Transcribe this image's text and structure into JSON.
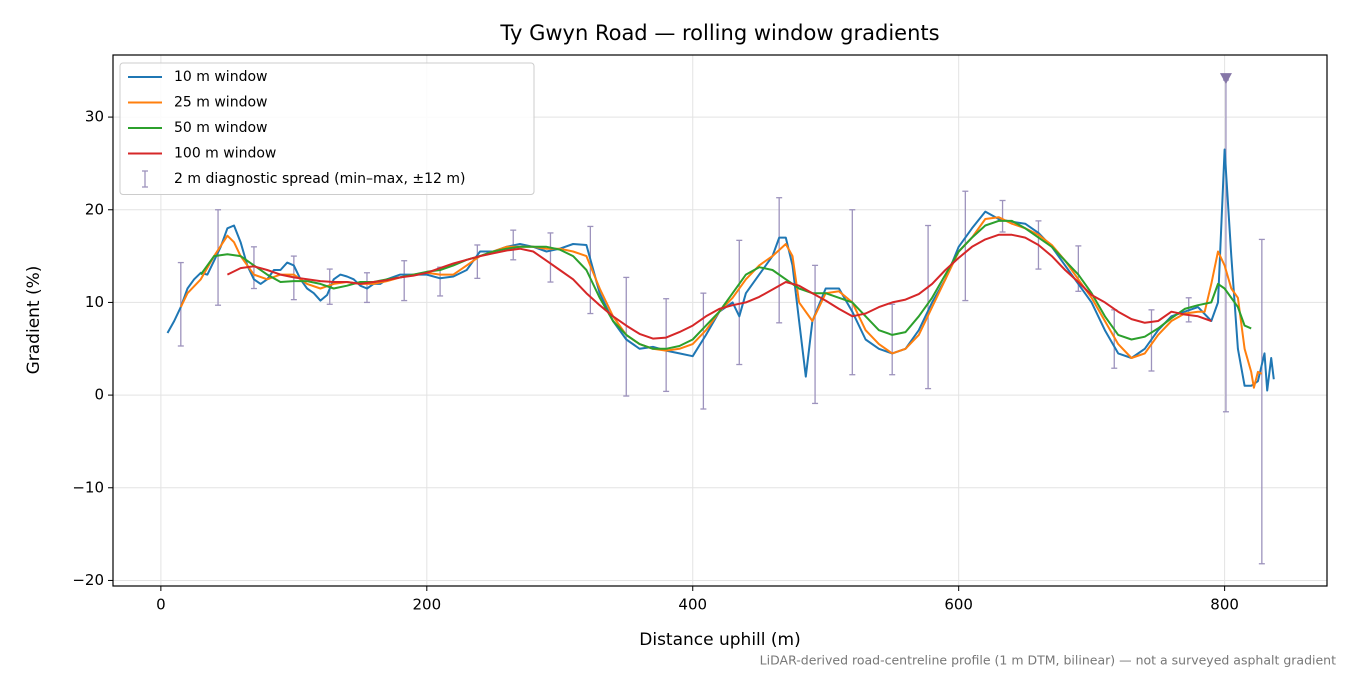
{
  "chart_data": {
    "type": "line",
    "title": "Ty Gwyn Road — rolling window gradients",
    "x_label": "Distance uphill (m)",
    "y_label": "Gradient (%)",
    "footnote": "LiDAR-derived road-centreline profile (1 m DTM, bilinear) — not a surveyed asphalt gradient",
    "xlim": [
      -36,
      877
    ],
    "ylim": [
      -20.6,
      36.7
    ],
    "xticks": [
      0,
      200,
      400,
      600,
      800
    ],
    "yticks": [
      {
        "value": -20,
        "label": "−20"
      },
      {
        "value": -10,
        "label": "−10"
      },
      0,
      10,
      20,
      30
    ],
    "grid": true,
    "legend": "upper left",
    "series": [
      {
        "name": "10 m window",
        "color": "#1f77b4",
        "x": [
          5,
          10,
          15,
          20,
          25,
          30,
          35,
          40,
          45,
          50,
          55,
          60,
          65,
          70,
          75,
          80,
          85,
          90,
          95,
          100,
          105,
          110,
          115,
          120,
          125,
          130,
          135,
          140,
          145,
          150,
          155,
          160,
          165,
          170,
          180,
          190,
          200,
          210,
          220,
          230,
          240,
          250,
          260,
          270,
          280,
          290,
          300,
          310,
          320,
          330,
          340,
          350,
          360,
          370,
          380,
          390,
          400,
          410,
          420,
          430,
          435,
          440,
          450,
          460,
          465,
          470,
          475,
          480,
          485,
          490,
          500,
          510,
          520,
          530,
          540,
          550,
          560,
          570,
          580,
          590,
          600,
          610,
          620,
          630,
          640,
          650,
          660,
          670,
          680,
          690,
          700,
          710,
          720,
          730,
          740,
          750,
          760,
          770,
          780,
          790,
          795,
          800,
          805,
          810,
          815,
          820,
          825,
          830,
          832,
          835,
          837
        ],
        "values": [
          6.7,
          8,
          9.5,
          11.5,
          12.5,
          13.2,
          13,
          14.5,
          16,
          18,
          18.3,
          16.5,
          14,
          12.5,
          12,
          12.5,
          13.5,
          13.5,
          14.3,
          14,
          12.5,
          11.5,
          11,
          10.2,
          10.8,
          12.5,
          13,
          12.8,
          12.5,
          11.8,
          11.5,
          12,
          12,
          12.5,
          13,
          13,
          13,
          12.6,
          12.8,
          13.5,
          15.5,
          15.5,
          16,
          16.3,
          16,
          15.5,
          15.8,
          16.3,
          16.2,
          11,
          8,
          6,
          5,
          5.2,
          4.8,
          4.5,
          4.2,
          6.5,
          9,
          10,
          8.5,
          11,
          13,
          15,
          17,
          17,
          14,
          8,
          2,
          8,
          11.5,
          11.5,
          9,
          6,
          5,
          4.5,
          5,
          7,
          10,
          12.5,
          16,
          18,
          19.8,
          19,
          18.7,
          18.5,
          17.5,
          16,
          14,
          12,
          10,
          7,
          4.5,
          4,
          5,
          7,
          8.5,
          9,
          9.5,
          8,
          10,
          26.5,
          15,
          5,
          1,
          1,
          1.5,
          4.5,
          0.5,
          4,
          1.7
        ]
      },
      {
        "name": "25 m window",
        "color": "#ff7f0e",
        "x": [
          15,
          20,
          30,
          40,
          50,
          55,
          60,
          70,
          80,
          90,
          100,
          110,
          120,
          130,
          140,
          150,
          160,
          170,
          180,
          190,
          200,
          210,
          220,
          230,
          240,
          250,
          260,
          270,
          280,
          290,
          300,
          310,
          320,
          330,
          340,
          350,
          360,
          370,
          380,
          390,
          400,
          410,
          420,
          430,
          440,
          450,
          460,
          470,
          475,
          480,
          490,
          500,
          510,
          520,
          530,
          540,
          550,
          560,
          570,
          580,
          590,
          600,
          610,
          620,
          630,
          640,
          650,
          660,
          670,
          680,
          690,
          700,
          710,
          720,
          730,
          740,
          750,
          760,
          770,
          780,
          785,
          790,
          795,
          800,
          805,
          810,
          815,
          820,
          822,
          825,
          828
        ],
        "values": [
          9.5,
          11,
          12.5,
          15,
          17.2,
          16.5,
          15,
          13,
          12.5,
          13,
          13,
          12,
          11.5,
          12,
          12.2,
          12,
          12,
          12.3,
          12.7,
          13,
          13.2,
          13,
          13,
          14,
          15,
          15.5,
          16,
          16,
          16,
          15.8,
          15.8,
          15.5,
          15,
          11.5,
          8.5,
          6.5,
          5.5,
          5,
          4.8,
          5,
          5.5,
          7,
          9,
          10.5,
          12.5,
          14,
          15,
          16.3,
          15,
          10,
          8,
          11,
          11.2,
          10,
          7,
          5.5,
          4.5,
          5,
          6.5,
          9.5,
          12.5,
          15.5,
          17,
          19,
          19.2,
          18.5,
          18,
          17.3,
          16.2,
          14.5,
          12.5,
          10.5,
          8,
          5.5,
          4,
          4.5,
          6.5,
          8,
          8.8,
          9,
          9,
          12,
          15.5,
          14,
          11.5,
          10.5,
          5,
          2.5,
          0.8,
          2.5,
          2.3
        ]
      },
      {
        "name": "50 m window",
        "color": "#2ca02c",
        "x": [
          30,
          40,
          50,
          60,
          70,
          80,
          90,
          100,
          110,
          120,
          130,
          140,
          150,
          160,
          170,
          180,
          190,
          200,
          210,
          220,
          230,
          240,
          250,
          260,
          270,
          280,
          290,
          300,
          310,
          320,
          330,
          340,
          350,
          360,
          370,
          380,
          390,
          400,
          410,
          420,
          430,
          440,
          450,
          460,
          470,
          480,
          490,
          500,
          510,
          520,
          530,
          540,
          550,
          560,
          570,
          580,
          590,
          600,
          610,
          620,
          630,
          640,
          650,
          660,
          670,
          680,
          690,
          700,
          710,
          720,
          730,
          740,
          750,
          760,
          770,
          780,
          790,
          795,
          800,
          810,
          815,
          820
        ],
        "values": [
          13,
          15,
          15.2,
          15,
          14,
          13,
          12.2,
          12.3,
          12.3,
          12,
          11.5,
          11.8,
          12.2,
          12.2,
          12.5,
          12.7,
          13,
          13.3,
          13.5,
          14,
          14.6,
          15,
          15.5,
          15.8,
          16,
          16,
          16,
          15.7,
          15,
          13.5,
          10.5,
          8,
          6.5,
          5.5,
          5,
          5,
          5.3,
          6,
          7.5,
          9,
          11,
          13,
          13.8,
          13.5,
          12.5,
          11.5,
          11,
          11,
          10.5,
          10,
          8.5,
          7,
          6.5,
          6.8,
          8.5,
          10.5,
          13,
          15.5,
          17,
          18.3,
          18.8,
          18.8,
          18,
          17,
          16,
          14.5,
          13,
          11,
          8.5,
          6.5,
          6,
          6.3,
          7.2,
          8.3,
          9.3,
          9.7,
          10,
          12,
          11.5,
          9.5,
          7.5,
          7.2
        ]
      },
      {
        "name": "100 m window",
        "color": "#d62728",
        "x": [
          50,
          60,
          70,
          80,
          90,
          100,
          110,
          120,
          130,
          140,
          150,
          160,
          170,
          180,
          190,
          200,
          210,
          220,
          230,
          240,
          250,
          260,
          270,
          280,
          290,
          300,
          310,
          320,
          330,
          340,
          350,
          360,
          370,
          380,
          390,
          400,
          410,
          420,
          430,
          440,
          450,
          460,
          470,
          480,
          490,
          500,
          510,
          520,
          530,
          540,
          550,
          560,
          570,
          580,
          590,
          600,
          610,
          620,
          630,
          640,
          650,
          660,
          670,
          680,
          690,
          700,
          710,
          720,
          730,
          740,
          750,
          760,
          770,
          780,
          790
        ],
        "values": [
          13,
          13.7,
          13.9,
          13.5,
          13,
          12.7,
          12.5,
          12.3,
          12.2,
          12.2,
          12,
          12.2,
          12.4,
          12.7,
          12.9,
          13.2,
          13.7,
          14.2,
          14.6,
          15,
          15.3,
          15.6,
          15.8,
          15.5,
          14.5,
          13.5,
          12.5,
          11,
          9.7,
          8.5,
          7.5,
          6.6,
          6.1,
          6.2,
          6.8,
          7.5,
          8.5,
          9.3,
          9.7,
          10,
          10.6,
          11.4,
          12.2,
          11.8,
          11,
          10.2,
          9.3,
          8.5,
          8.8,
          9.5,
          10,
          10.3,
          10.9,
          12,
          13.5,
          14.8,
          16,
          16.8,
          17.3,
          17.3,
          17,
          16.2,
          15,
          13.5,
          12.2,
          10.8,
          10,
          9,
          8.2,
          7.8,
          8,
          9,
          8.7,
          8.5,
          8
        ]
      }
    ],
    "errorbars": {
      "name": "2 m diagnostic spread (min–max, ±12 m)",
      "color": "#9d93bd",
      "x": [
        15,
        43,
        70,
        100,
        127,
        155,
        183,
        210,
        238,
        265,
        293,
        323,
        350,
        380,
        408,
        435,
        465,
        492,
        520,
        550,
        577,
        605,
        633,
        660,
        690,
        717,
        745,
        773,
        801,
        828
      ],
      "low": [
        5.3,
        9.7,
        11.5,
        10.3,
        9.8,
        10,
        10.2,
        10.7,
        12.6,
        14.6,
        12.2,
        8.8,
        -0.1,
        0.4,
        -1.5,
        3.3,
        7.8,
        -0.9,
        2.2,
        2.2,
        0.7,
        10.2,
        17.6,
        13.6,
        11.2,
        2.9,
        2.6,
        7.9,
        -1.8,
        -18.2
      ],
      "high": [
        14.3,
        20,
        16,
        15,
        13.6,
        13.2,
        14.5,
        13.8,
        16.2,
        17.8,
        17.5,
        18.2,
        12.7,
        10.4,
        11,
        16.7,
        21.3,
        14,
        20,
        9.8,
        18.3,
        22,
        21,
        18.8,
        16.1,
        9.2,
        9.2,
        10.5,
        34,
        16.8
      ],
      "clip_marker": {
        "x": 801,
        "y": 34.2,
        "color": "#8677a8"
      }
    }
  }
}
